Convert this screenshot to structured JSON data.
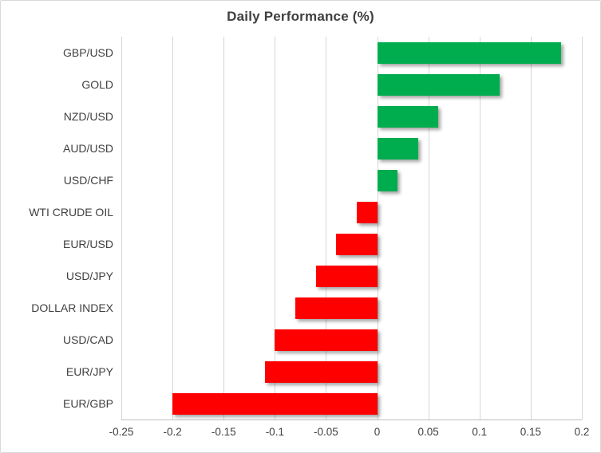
{
  "chart_data": {
    "type": "bar",
    "orientation": "horizontal",
    "title": "Daily Performance (%)",
    "categories": [
      "GBP/USD",
      "GOLD",
      "NZD/USD",
      "AUD/USD",
      "USD/CHF",
      "WTI CRUDE OIL",
      "EUR/USD",
      "USD/JPY",
      "DOLLAR INDEX",
      "USD/CAD",
      "EUR/JPY",
      "EUR/GBP"
    ],
    "values": [
      0.18,
      0.12,
      0.06,
      0.04,
      0.02,
      -0.02,
      -0.04,
      -0.06,
      -0.08,
      -0.1,
      -0.11,
      -0.2
    ],
    "xlabel": "",
    "ylabel": "",
    "xlim": [
      -0.25,
      0.2
    ],
    "x_ticks": [
      -0.25,
      -0.2,
      -0.15,
      -0.1,
      -0.05,
      0,
      0.05,
      0.1,
      0.15,
      0.2
    ],
    "x_tick_labels": [
      "-0.25",
      "-0.2",
      "-0.15",
      "-0.1",
      "-0.05",
      "0",
      "0.05",
      "0.1",
      "0.15",
      "0.2"
    ],
    "grid": true,
    "legend": false,
    "colors": {
      "positive": "#00AD4E",
      "negative": "#FF0000",
      "gridline": "#D6D6D6",
      "axis_line": "#BFBFBF",
      "text": "#404040",
      "title_text": "#3F3F3F",
      "border": "#D9D9D9",
      "background": "#FFFFFF"
    }
  }
}
